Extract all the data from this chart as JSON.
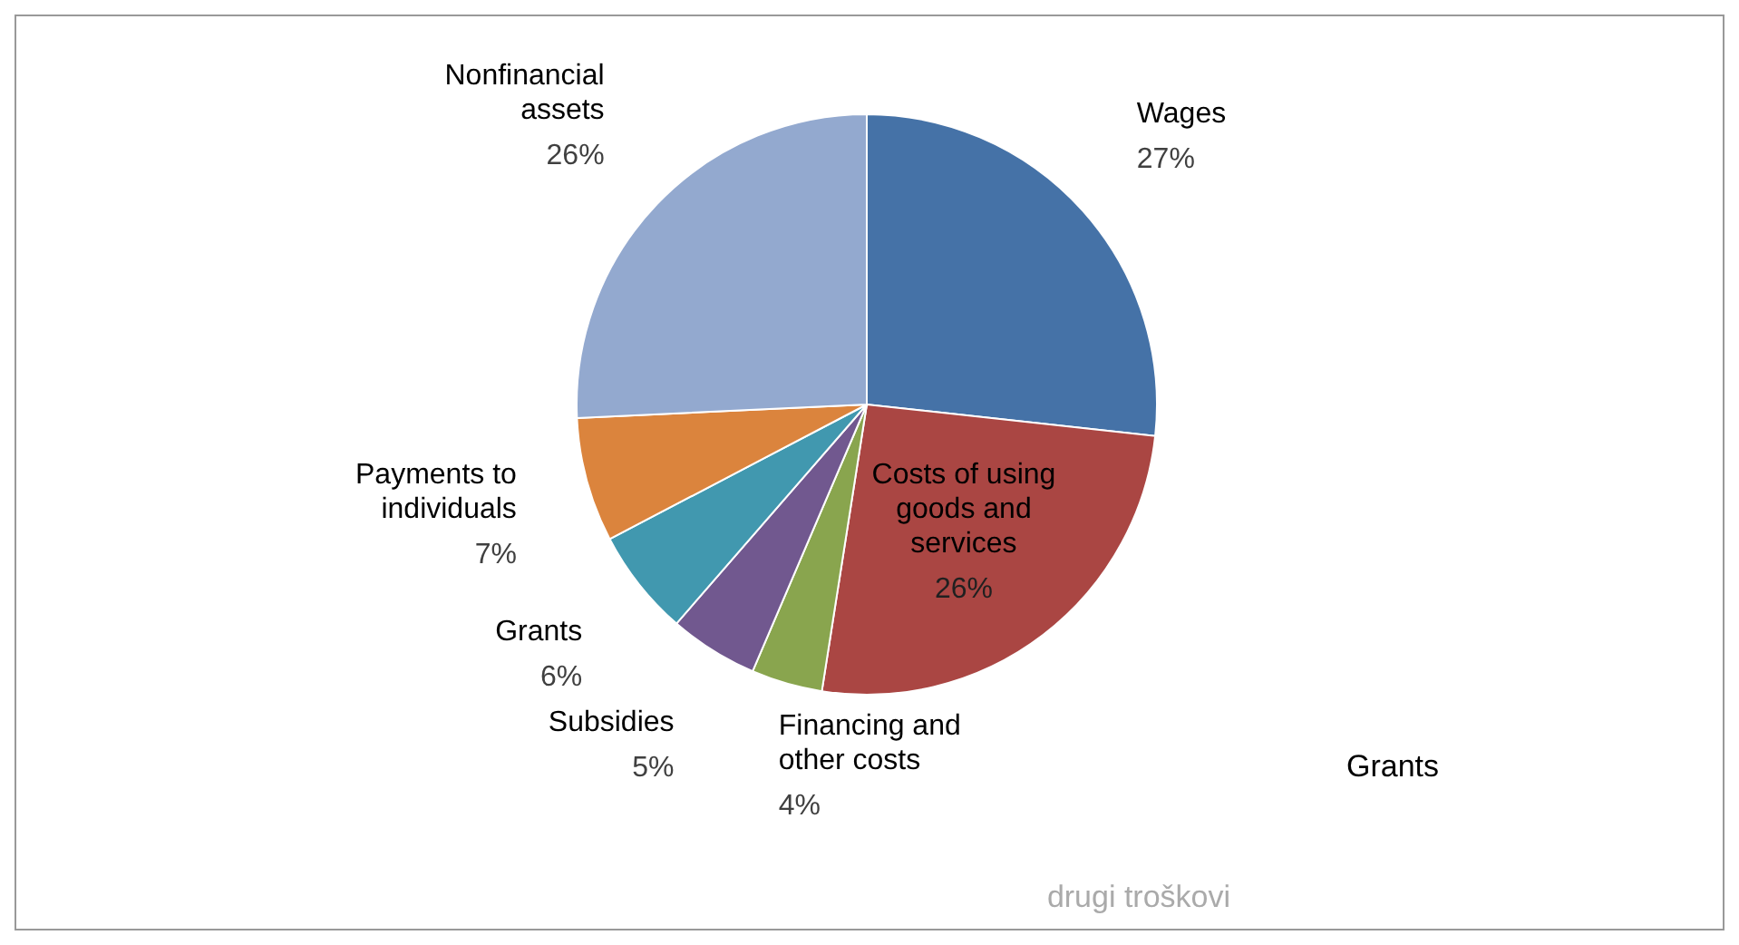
{
  "chart_data": {
    "type": "pie",
    "categories": [
      "Wages",
      "Costs of using goods and services",
      "Financing and other costs",
      "Subsidies",
      "Grants",
      "Payments to individuals",
      "Nonfinancial assets"
    ],
    "values": [
      27,
      26,
      4,
      5,
      6,
      7,
      26
    ],
    "value_labels": [
      "27%",
      "26%",
      "4%",
      "5%",
      "6%",
      "7%",
      "26%"
    ],
    "colors": [
      "#4572a7",
      "#aa4643",
      "#89a54e",
      "#71588f",
      "#4198af",
      "#db843d",
      "#93a9cf"
    ],
    "legend": false,
    "annotations": [
      "Grants",
      "drugi troškovi"
    ]
  }
}
